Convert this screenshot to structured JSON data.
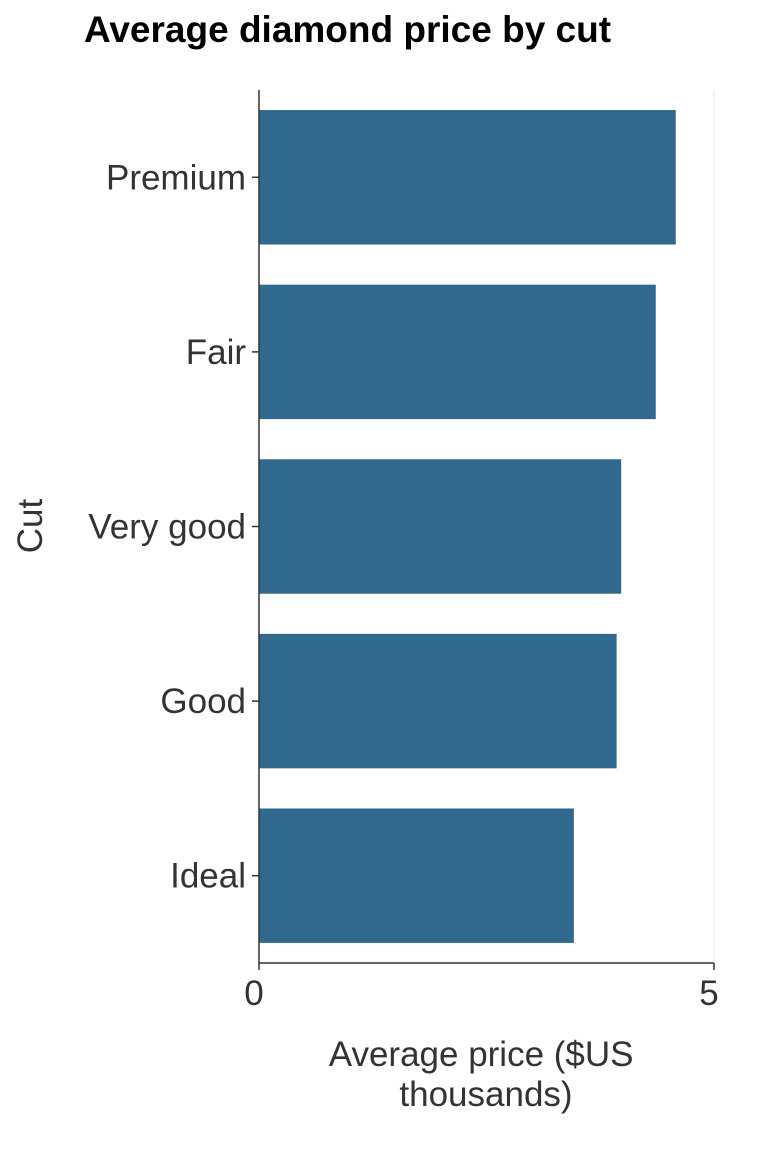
{
  "chart_data": {
    "type": "bar",
    "orientation": "horizontal",
    "title": "Average diamond price by cut",
    "xlabel_lines": [
      "Average price ($US",
      "thousands)"
    ],
    "ylabel": "Cut",
    "categories": [
      "Premium",
      "Fair",
      "Very good",
      "Good",
      "Ideal"
    ],
    "values": [
      4.58,
      4.36,
      3.98,
      3.93,
      3.46
    ],
    "xlim": [
      0,
      5
    ],
    "xticks": [
      0,
      5
    ],
    "xtick_labels": [
      "0",
      "5"
    ],
    "bar_color": "#31688e",
    "grid": "major x",
    "legend": "none"
  }
}
